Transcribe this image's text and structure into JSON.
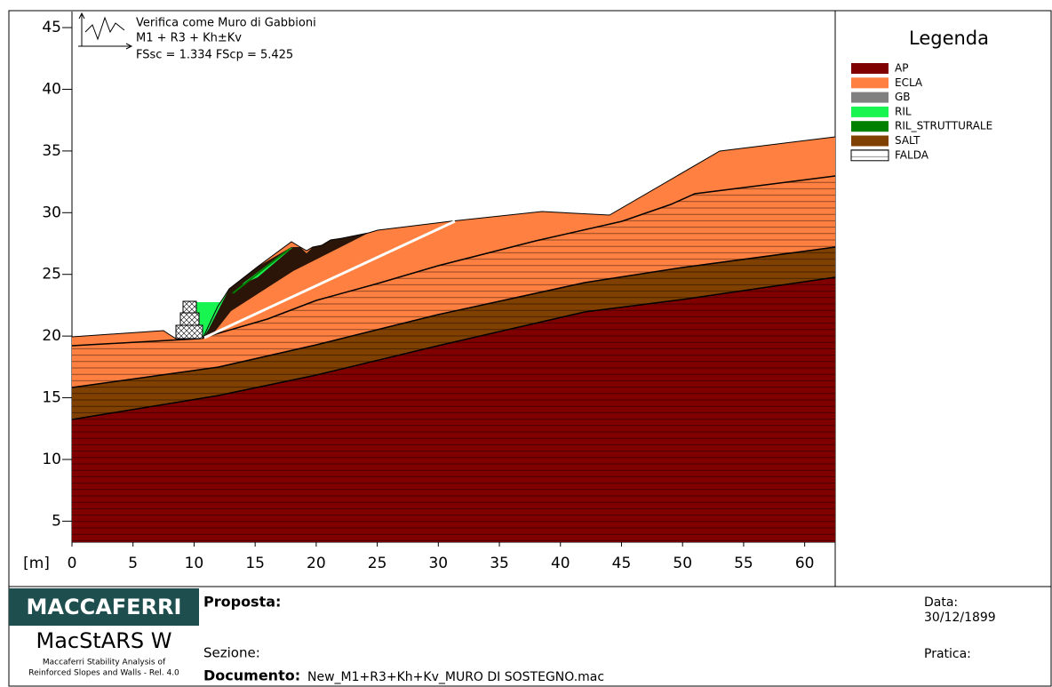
{
  "plot": {
    "annotation": [
      "Verifica come Muro di Gabbioni",
      "M1 + R3 + Kh±Kv",
      "FSsc = 1.334 FScp = 5.425"
    ],
    "x_unit": "[m]",
    "xlim": [
      0,
      62.5
    ],
    "ylim": [
      3.3,
      46.3
    ],
    "xticks": [
      0,
      5,
      10,
      15,
      20,
      25,
      30,
      35,
      40,
      45,
      50,
      55,
      60
    ],
    "yticks": [
      5,
      10,
      15,
      20,
      25,
      30,
      35,
      40,
      45
    ]
  },
  "legend": {
    "title": "Legenda",
    "items": [
      {
        "label": "AP",
        "color": "#800000"
      },
      {
        "label": "ECLA",
        "color": "#ff8040"
      },
      {
        "label": "GB",
        "color": "#808080"
      },
      {
        "label": "RIL",
        "color": "#19f550"
      },
      {
        "label": "RIL_STRUTTURALE",
        "color": "#008000"
      },
      {
        "label": "SALT",
        "color": "#804000"
      },
      {
        "label": "FALDA"
      }
    ]
  },
  "footer": {
    "logo": "MACCAFERRI",
    "product": "MacStARS W",
    "product_subtitle": [
      "Maccaferri Stability Analysis of",
      "Reinforced Slopes and Walls - Rel. 4.0"
    ],
    "proposta_label": "Proposta:",
    "sezione_label": "Sezione:",
    "documento_label": "Documento:",
    "documento": "New_M1+R3+Kh+Kv_MURO DI SOSTEGNO.mac",
    "data_label": "Data:",
    "data": "30/12/1899",
    "pratica_label": "Pratica:"
  }
}
